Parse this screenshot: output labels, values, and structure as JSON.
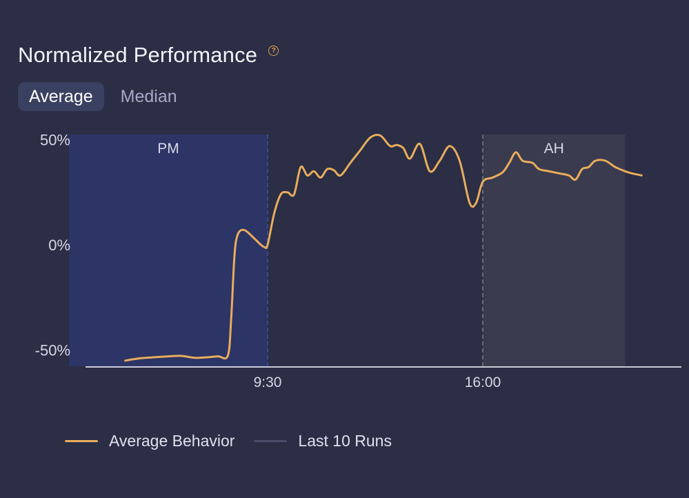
{
  "header": {
    "title": "Normalized Performance",
    "help_icon": "question-circle-icon"
  },
  "tabs": [
    {
      "label": "Average",
      "active": true
    },
    {
      "label": "Median",
      "active": false
    }
  ],
  "colors": {
    "line": "#e9ad5c",
    "pm_band": "#2d3466",
    "ah_band": "#3a3b4f",
    "axis": "#c9cbd8",
    "last_runs": "#4b4e6a"
  },
  "legend": [
    {
      "label": "Average Behavior",
      "color": "#e9ad5c"
    },
    {
      "label": "Last 10 Runs",
      "color": "#4b4e6a"
    }
  ],
  "chart_data": {
    "type": "line",
    "title": "Normalized Performance",
    "xlabel": "",
    "ylabel": "",
    "x_range_hours": [
      3.5,
      21.2
    ],
    "ylim": [
      -55,
      55
    ],
    "y_ticks": [
      {
        "value": 50,
        "label": "50%"
      },
      {
        "value": 0,
        "label": "0%"
      },
      {
        "value": -50,
        "label": "-50%"
      }
    ],
    "x_ticks": [
      {
        "value": 9.5,
        "label": "9:30"
      },
      {
        "value": 16,
        "label": "16:00"
      }
    ],
    "sessions": [
      {
        "label": "PM",
        "start": 3.5,
        "end": 9.5
      },
      {
        "label": "AH",
        "start": 16,
        "end": 20.3
      }
    ],
    "series": [
      {
        "name": "Average Behavior",
        "points": [
          [
            5.2,
            -55
          ],
          [
            5.6,
            -54
          ],
          [
            6.0,
            -53.5
          ],
          [
            6.5,
            -53
          ],
          [
            6.9,
            -52.8
          ],
          [
            7.3,
            -53.7
          ],
          [
            7.6,
            -53.5
          ],
          [
            8.0,
            -53
          ],
          [
            8.3,
            -52.6
          ],
          [
            8.4,
            -35
          ],
          [
            8.5,
            -5
          ],
          [
            8.6,
            5
          ],
          [
            8.8,
            7
          ],
          [
            9.1,
            3
          ],
          [
            9.3,
            0
          ],
          [
            9.4,
            -1
          ],
          [
            9.5,
            0
          ],
          [
            9.7,
            15
          ],
          [
            9.9,
            24
          ],
          [
            10.1,
            25
          ],
          [
            10.3,
            24
          ],
          [
            10.5,
            37
          ],
          [
            10.7,
            33
          ],
          [
            10.9,
            35
          ],
          [
            11.1,
            32
          ],
          [
            11.3,
            36
          ],
          [
            11.5,
            35.5
          ],
          [
            11.7,
            33
          ],
          [
            12.0,
            39
          ],
          [
            12.3,
            45
          ],
          [
            12.6,
            51
          ],
          [
            12.9,
            52
          ],
          [
            13.2,
            47
          ],
          [
            13.4,
            47.5
          ],
          [
            13.6,
            46
          ],
          [
            13.8,
            41
          ],
          [
            14.1,
            48
          ],
          [
            14.4,
            35
          ],
          [
            14.7,
            40
          ],
          [
            15.0,
            47
          ],
          [
            15.3,
            40
          ],
          [
            15.6,
            20
          ],
          [
            15.8,
            20
          ],
          [
            16.0,
            30
          ],
          [
            16.3,
            32
          ],
          [
            16.6,
            34.5
          ],
          [
            16.8,
            39
          ],
          [
            17.0,
            44
          ],
          [
            17.2,
            40
          ],
          [
            17.5,
            39
          ],
          [
            17.7,
            36
          ],
          [
            18.0,
            35
          ],
          [
            18.3,
            34
          ],
          [
            18.6,
            33
          ],
          [
            18.8,
            31
          ],
          [
            19.0,
            36
          ],
          [
            19.2,
            37
          ],
          [
            19.4,
            40
          ],
          [
            19.7,
            40
          ],
          [
            20.0,
            37
          ],
          [
            20.3,
            35
          ],
          [
            20.5,
            34
          ],
          [
            20.8,
            33
          ]
        ]
      },
      {
        "name": "Last 10 Runs",
        "points": []
      }
    ]
  }
}
